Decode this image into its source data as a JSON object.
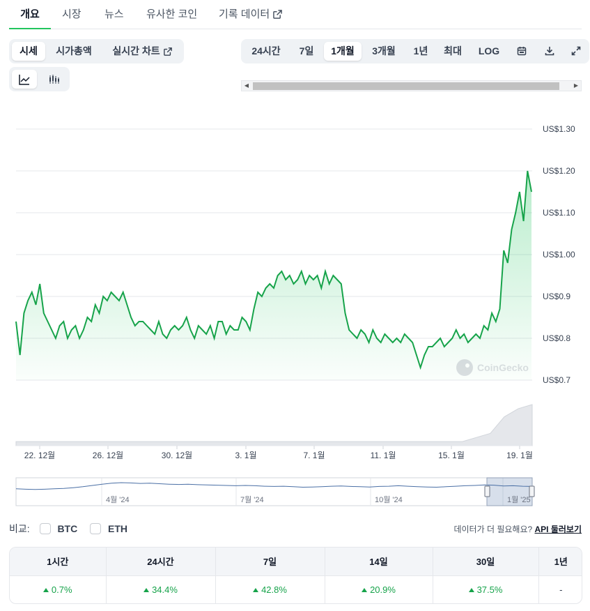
{
  "nav": {
    "tabs": [
      {
        "label": "개요",
        "active": true
      },
      {
        "label": "시장"
      },
      {
        "label": "뉴스"
      },
      {
        "label": "유사한 코인"
      },
      {
        "label": "기록 데이터"
      }
    ]
  },
  "view_toggle": {
    "items": [
      {
        "label": "시세",
        "active": true
      },
      {
        "label": "시가총액"
      },
      {
        "label": "실시간 차트"
      }
    ]
  },
  "chart_style": {
    "line_icon": "line-chart-icon",
    "candle_icon": "candlestick-icon",
    "active": "line"
  },
  "range": {
    "items": [
      "24시간",
      "7일",
      "1개월",
      "3개월",
      "1년",
      "최대",
      "LOG"
    ],
    "active": "1개월",
    "icons": [
      "calendar-icon",
      "download-icon",
      "expand-icon"
    ]
  },
  "colors": {
    "accent": "#16a34a",
    "line": "#16a34a",
    "nav_line": "#4a6fa5"
  },
  "watermark": "CoinGecko",
  "chart_data": {
    "type": "area",
    "y_ticks": [
      "US$1.30",
      "US$1.20",
      "US$1.10",
      "US$1.00",
      "US$0.9",
      "US$0.8",
      "US$0.7"
    ],
    "y_tick_values": [
      1.3,
      1.2,
      1.1,
      1.0,
      0.9,
      0.8,
      0.7
    ],
    "ylim": [
      0.7,
      1.3
    ],
    "x_ticks": [
      "22. 12월",
      "26. 12월",
      "30. 12월",
      "3. 1월",
      "7. 1월",
      "11. 1월",
      "15. 1월",
      "19. 1월"
    ],
    "grid": true,
    "series": [
      {
        "values": [
          0.84,
          0.76,
          0.86,
          0.89,
          0.91,
          0.88,
          0.93,
          0.86,
          0.84,
          0.82,
          0.8,
          0.83,
          0.84,
          0.8,
          0.82,
          0.83,
          0.8,
          0.82,
          0.85,
          0.84,
          0.88,
          0.86,
          0.9,
          0.89,
          0.91,
          0.9,
          0.89,
          0.91,
          0.88,
          0.85,
          0.83,
          0.84,
          0.84,
          0.83,
          0.82,
          0.81,
          0.84,
          0.81,
          0.8,
          0.82,
          0.83,
          0.82,
          0.83,
          0.85,
          0.82,
          0.8,
          0.83,
          0.82,
          0.81,
          0.83,
          0.8,
          0.84,
          0.84,
          0.81,
          0.83,
          0.82,
          0.82,
          0.85,
          0.84,
          0.82,
          0.87,
          0.91,
          0.9,
          0.92,
          0.93,
          0.92,
          0.95,
          0.96,
          0.94,
          0.95,
          0.93,
          0.94,
          0.96,
          0.93,
          0.95,
          0.94,
          0.95,
          0.92,
          0.96,
          0.93,
          0.95,
          0.94,
          0.93,
          0.86,
          0.82,
          0.81,
          0.8,
          0.82,
          0.81,
          0.79,
          0.82,
          0.8,
          0.79,
          0.81,
          0.8,
          0.79,
          0.8,
          0.79,
          0.81,
          0.8,
          0.79,
          0.76,
          0.73,
          0.76,
          0.78,
          0.78,
          0.79,
          0.8,
          0.78,
          0.79,
          0.8,
          0.82,
          0.8,
          0.81,
          0.79,
          0.8,
          0.81,
          0.8,
          0.83,
          0.82,
          0.86,
          0.84,
          0.87,
          1.01,
          0.98,
          1.06,
          1.1,
          1.15,
          1.08,
          1.2,
          1.15
        ]
      }
    ],
    "volume_series": [
      0.1,
      0.1,
      0.1,
      0.1,
      0.1,
      0.1,
      0.1,
      0.1,
      0.1,
      0.1,
      0.1,
      0.1,
      0.1,
      0.1,
      0.1,
      0.1,
      0.1,
      0.1,
      0.1,
      0.1,
      0.1,
      0.1,
      0.1,
      0.1,
      0.1,
      0.1,
      0.1,
      0.1,
      0.1,
      0.1,
      0.1,
      0.1,
      0.1,
      0.2,
      0.3,
      0.7,
      0.9,
      1.0
    ],
    "navigator_series": [
      0.62,
      0.6,
      0.59,
      0.6,
      0.62,
      0.63,
      0.66,
      0.7,
      0.75,
      0.8,
      0.84,
      0.86,
      0.85,
      0.83,
      0.84,
      0.82,
      0.8,
      0.79,
      0.8,
      0.78,
      0.77,
      0.76,
      0.75,
      0.74,
      0.75,
      0.74,
      0.72,
      0.71,
      0.72,
      0.7,
      0.68,
      0.69,
      0.7,
      0.72,
      0.73,
      0.71,
      0.7,
      0.69,
      0.71,
      0.72,
      0.74,
      0.72,
      0.7,
      0.69,
      0.68,
      0.7,
      0.72,
      0.74,
      0.75,
      0.77,
      0.76,
      0.73,
      0.74,
      0.72,
      0.71
    ],
    "navigator_labels": [
      "4월 '24",
      "7월 '24",
      "10월 '24",
      "1월 '25"
    ]
  },
  "compare": {
    "label": "비교:",
    "options": [
      "BTC",
      "ETH"
    ]
  },
  "api": {
    "prompt": "데이터가 더 필요해요?",
    "link": "API 둘러보기"
  },
  "performance": {
    "headers": [
      "1시간",
      "24시간",
      "7일",
      "14일",
      "30일",
      "1년"
    ],
    "values": [
      "0.7%",
      "34.4%",
      "42.8%",
      "20.9%",
      "37.5%",
      "-"
    ]
  }
}
